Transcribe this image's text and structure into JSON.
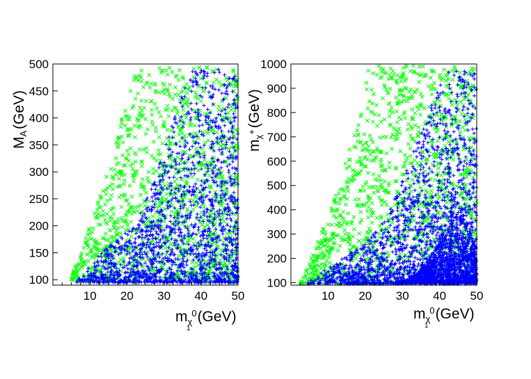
{
  "colors": {
    "green_series": "#00ff00",
    "blue_series": "#0000ff",
    "axis": "#000000"
  },
  "chart_data": [
    {
      "type": "scatter",
      "xlabel": {
        "main": "m",
        "sub_greek": "χ",
        "sub_index": "1",
        "sup": "0",
        "unit": "(GeV)"
      },
      "ylabel": {
        "main": "M",
        "sub": "A",
        "unit": "(GeV)"
      },
      "xlim": [
        0,
        50
      ],
      "ylim": [
        90,
        500
      ],
      "xticks": [
        10,
        20,
        30,
        40,
        50
      ],
      "yticks": [
        100,
        150,
        200,
        250,
        300,
        350,
        400,
        450,
        500
      ],
      "grid": false,
      "series": [
        {
          "marker": "x",
          "color": "#00ff00",
          "region": {
            "x_min": 4.5,
            "x_max": 50,
            "y_min": 95,
            "y_max": 495,
            "boundary": [
              [
                4.5,
                95
              ],
              [
                6,
                125
              ],
              [
                8,
                160
              ],
              [
                10,
                200
              ],
              [
                13,
                260
              ],
              [
                16,
                330
              ],
              [
                19,
                410
              ],
              [
                22,
                480
              ],
              [
                24,
                495
              ]
            ]
          }
        },
        {
          "marker": "+",
          "color": "#0000ff",
          "region": {
            "x_min": 6,
            "x_max": 50,
            "y_min": 95,
            "y_max": 490,
            "boundary": [
              [
                6,
                95
              ],
              [
                9,
                120
              ],
              [
                13,
                150
              ],
              [
                18,
                180
              ],
              [
                22,
                200
              ],
              [
                26,
                260
              ],
              [
                30,
                340
              ],
              [
                34,
                430
              ],
              [
                38,
                490
              ]
            ]
          }
        }
      ]
    },
    {
      "type": "scatter",
      "xlabel": {
        "main": "m",
        "sub_greek": "χ",
        "sub_index": "1",
        "sup": "0",
        "unit": "(GeV)"
      },
      "ylabel": {
        "main": "m",
        "sub": "χ",
        "sup": "+",
        "unit": "(GeV)"
      },
      "xlim": [
        0,
        50
      ],
      "ylim": [
        90,
        1000
      ],
      "xticks": [
        10,
        20,
        30,
        40,
        50
      ],
      "yticks": [
        100,
        200,
        300,
        400,
        500,
        600,
        700,
        800,
        900,
        1000
      ],
      "grid": false,
      "series": [
        {
          "marker": "x",
          "color": "#00ff00",
          "region": {
            "x_min": 2.5,
            "x_max": 50,
            "y_min": 95,
            "y_max": 995,
            "boundary": [
              [
                2.5,
                95
              ],
              [
                5,
                200
              ],
              [
                8,
                300
              ],
              [
                11,
                420
              ],
              [
                14,
                560
              ],
              [
                17,
                720
              ],
              [
                19,
                850
              ],
              [
                21,
                990
              ]
            ]
          }
        },
        {
          "marker": "+",
          "color": "#0000ff",
          "region": {
            "x_min": 4,
            "x_max": 50,
            "y_min": 95,
            "y_max": 980,
            "boundary": [
              [
                4,
                95
              ],
              [
                8,
                140
              ],
              [
                14,
                200
              ],
              [
                20,
                260
              ],
              [
                26,
                380
              ],
              [
                30,
                520
              ],
              [
                34,
                680
              ],
              [
                38,
                840
              ],
              [
                42,
                980
              ]
            ]
          }
        },
        {
          "marker": "dense",
          "color": "#0000ff",
          "region": {
            "x_min": 28,
            "x_max": 50,
            "peak_x": 44.5,
            "peak_y": 470,
            "base_y": 100
          }
        }
      ]
    }
  ]
}
